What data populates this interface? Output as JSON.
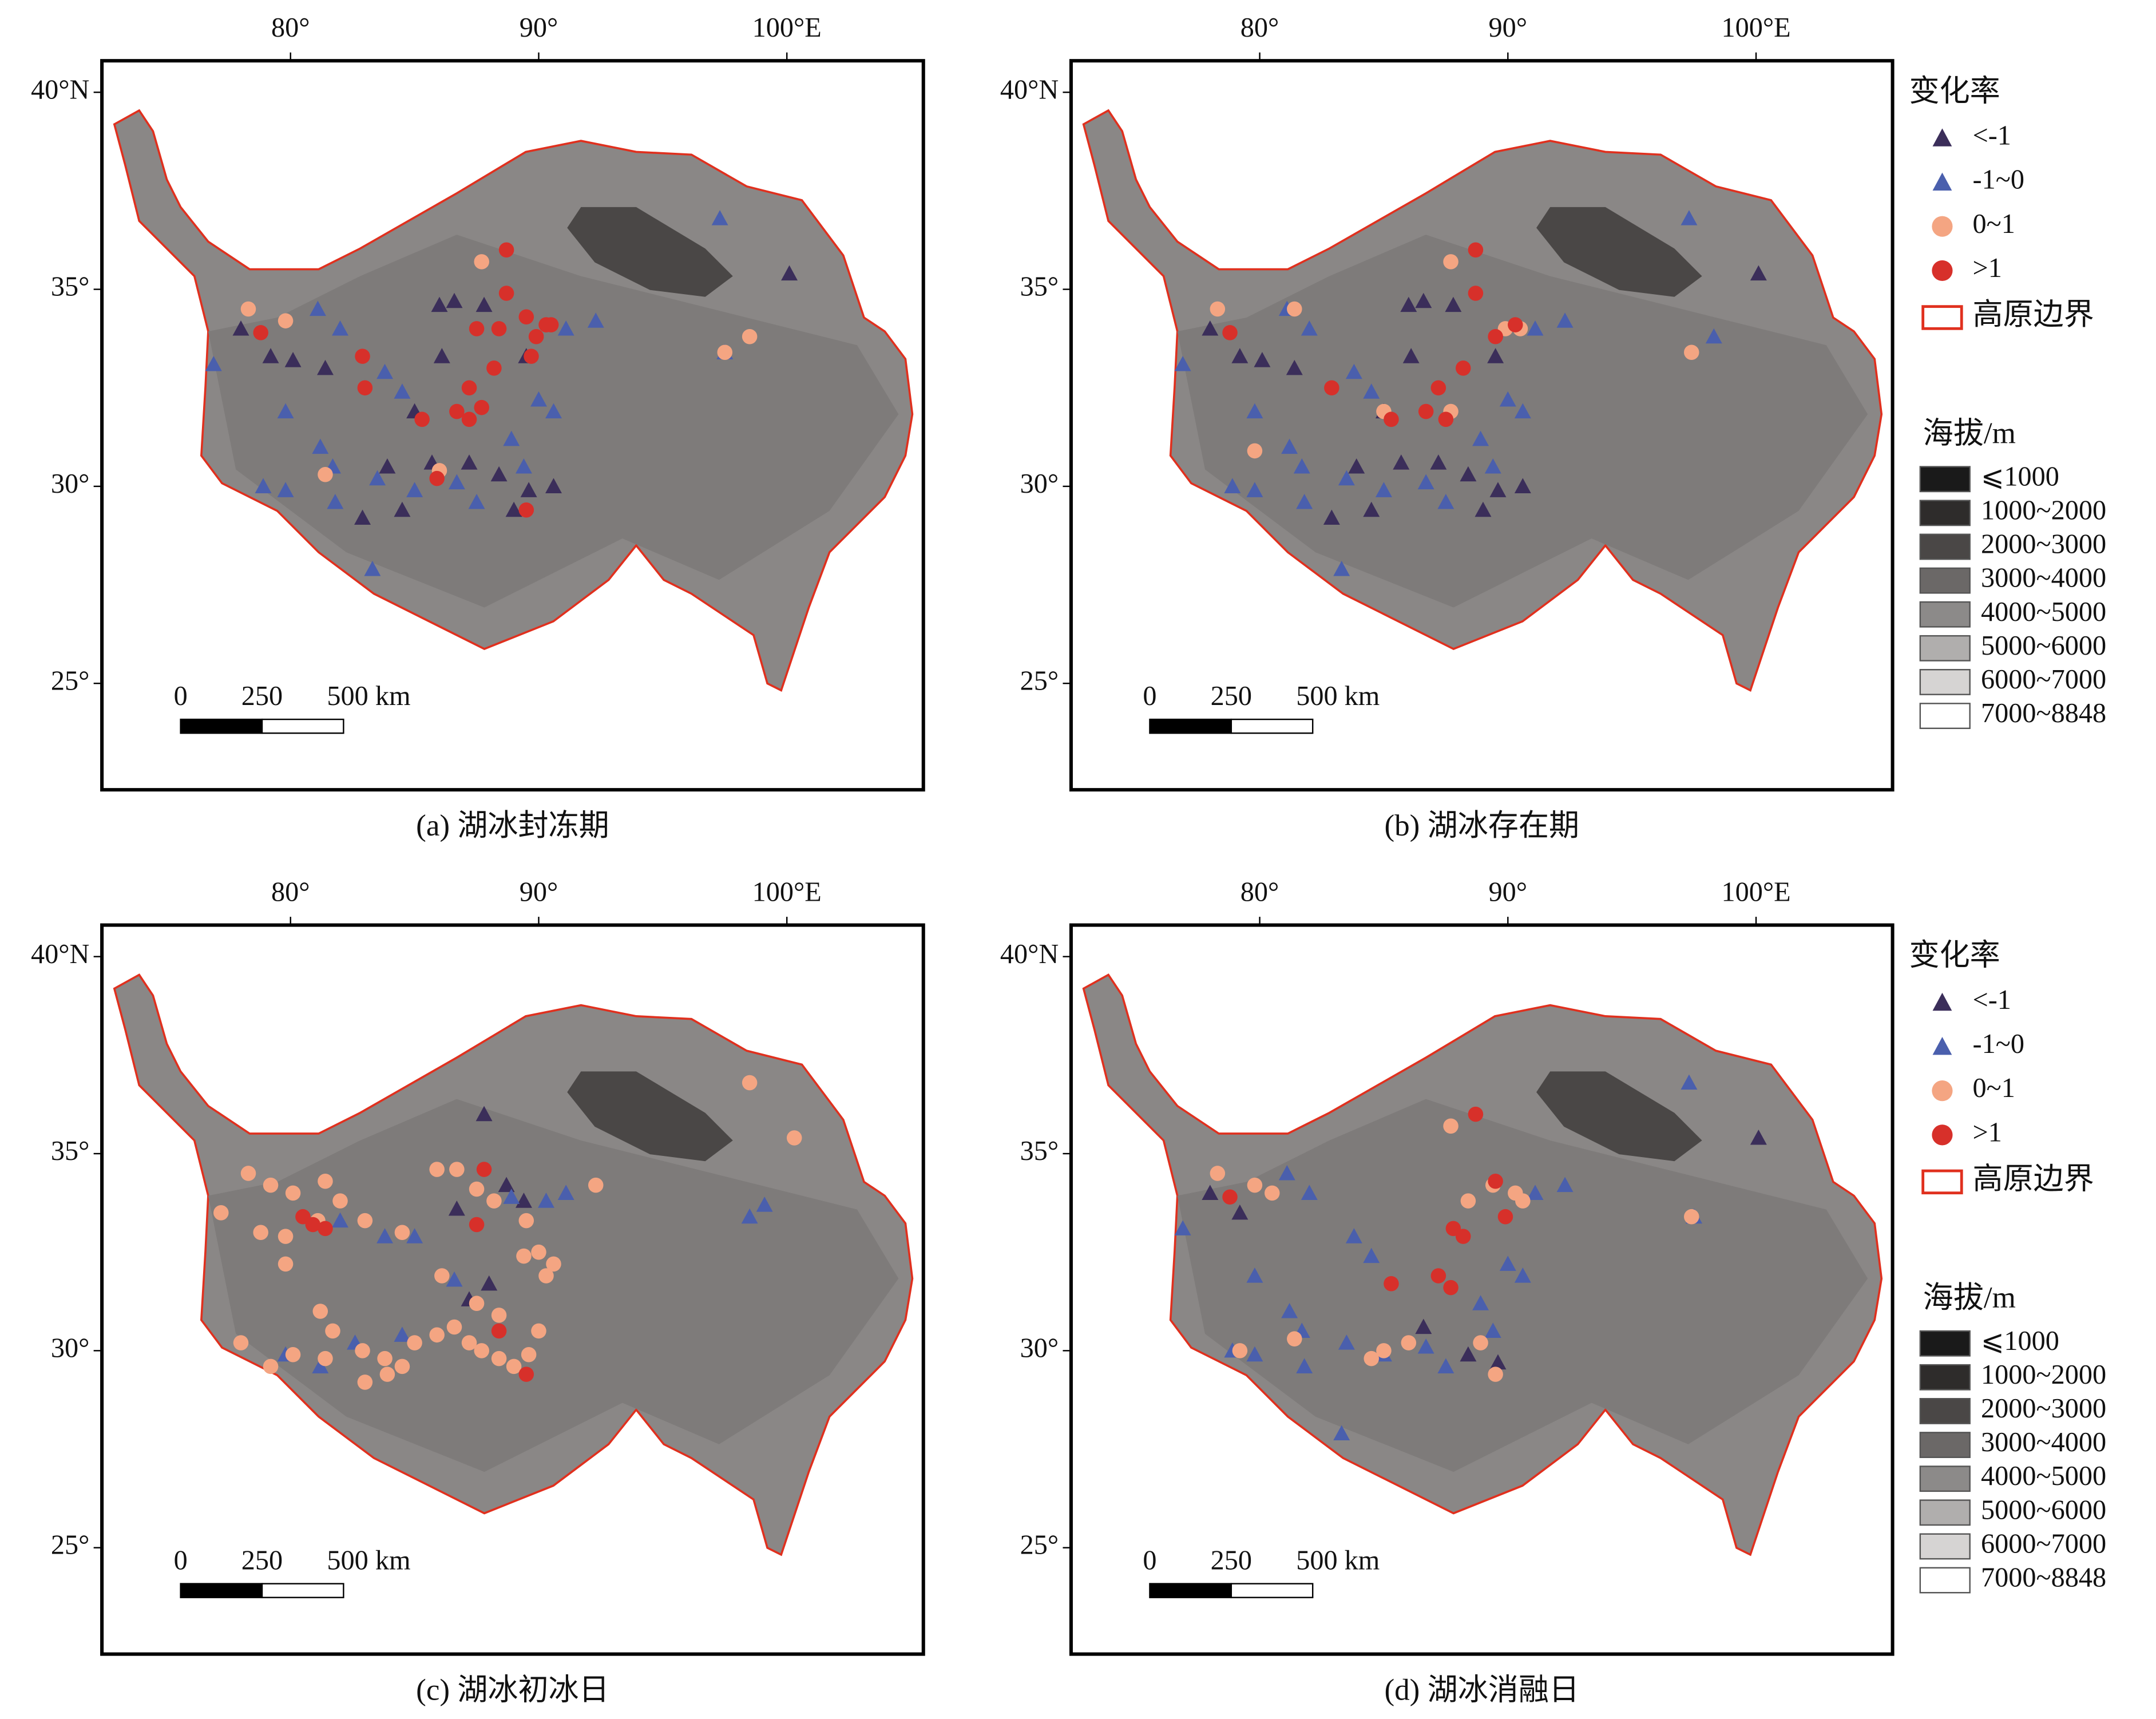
{
  "chart_data": [
    {
      "type": "scatter",
      "title": "(a) 湖冰封冻期",
      "xlim": [
        72.4,
        105.5
      ],
      "ylim": [
        22.3,
        40.8
      ],
      "xticks": [
        {
          "value": 80,
          "label": "80°"
        },
        {
          "value": 90,
          "label": "90°"
        },
        {
          "value": 100,
          "label": "100°E"
        }
      ],
      "yticks": [
        {
          "value": 40,
          "label": "40°N"
        },
        {
          "value": 35,
          "label": "35°"
        },
        {
          "value": 30,
          "label": "30°"
        },
        {
          "value": 25,
          "label": "25°"
        }
      ],
      "series": [
        {
          "name": "<-1",
          "color": "#3b2e5a",
          "marker": "triangle",
          "x": [
            78.0,
            79.2,
            80.1,
            81.4,
            86.0,
            86.6,
            87.8,
            89.5,
            86.1,
            85.0,
            85.7,
            87.2,
            88.4,
            89.6,
            90.6,
            83.9,
            82.9,
            84.5,
            89.0,
            100.1
          ],
          "y": [
            34.0,
            33.3,
            33.2,
            33.0,
            34.6,
            34.7,
            34.6,
            33.3,
            33.3,
            31.9,
            30.6,
            30.6,
            30.3,
            29.9,
            30.0,
            30.5,
            29.2,
            29.4,
            29.4,
            35.4
          ]
        },
        {
          "name": "-1~0",
          "color": "#4a5fad",
          "marker": "triangle",
          "x": [
            76.9,
            81.1,
            82.0,
            83.8,
            84.5,
            79.8,
            81.2,
            81.7,
            78.9,
            79.8,
            83.5,
            85.0,
            86.7,
            87.5,
            89.4,
            90.0,
            90.6,
            91.1,
            92.3,
            97.3,
            97.5,
            83.3,
            81.8,
            88.9
          ],
          "y": [
            33.1,
            34.5,
            34.0,
            32.9,
            32.4,
            31.9,
            31.0,
            30.5,
            30.0,
            29.9,
            30.2,
            29.9,
            30.1,
            29.6,
            30.5,
            32.2,
            31.9,
            34.0,
            34.2,
            36.8,
            33.4,
            27.9,
            29.6,
            31.2
          ]
        },
        {
          "name": "0~1",
          "color": "#f4a582",
          "marker": "circle",
          "x": [
            78.3,
            79.8,
            98.5,
            97.5,
            81.4,
            86.0,
            87.7
          ],
          "y": [
            34.5,
            34.2,
            33.8,
            33.4,
            30.3,
            30.4,
            35.7
          ]
        },
        {
          "name": ">1",
          "color": "#d7302a",
          "marker": "circle",
          "x": [
            88.7,
            88.7,
            89.5,
            90.3,
            89.9,
            89.7,
            90.5,
            88.4,
            87.5,
            88.2,
            87.2,
            87.7,
            86.7,
            87.2,
            85.3,
            83.0,
            82.9,
            78.8,
            85.9,
            89.5
          ],
          "y": [
            36.0,
            34.9,
            34.3,
            34.1,
            33.8,
            33.3,
            34.1,
            34.0,
            34.0,
            33.0,
            32.5,
            32.0,
            31.9,
            31.7,
            31.7,
            32.5,
            33.3,
            33.9,
            30.2,
            29.4
          ]
        }
      ]
    },
    {
      "type": "scatter",
      "title": "(b) 湖冰存在期",
      "xlim": [
        72.4,
        105.5
      ],
      "ylim": [
        22.3,
        40.8
      ],
      "xticks": [
        {
          "value": 80,
          "label": "80°"
        },
        {
          "value": 90,
          "label": "90°"
        },
        {
          "value": 100,
          "label": "100°E"
        }
      ],
      "yticks": [
        {
          "value": 40,
          "label": "40°N"
        },
        {
          "value": 35,
          "label": "35°"
        },
        {
          "value": 30,
          "label": "30°"
        },
        {
          "value": 25,
          "label": "25°"
        }
      ],
      "series": [
        {
          "name": "<-1",
          "color": "#3b2e5a",
          "marker": "triangle",
          "x": [
            78.0,
            79.2,
            80.1,
            81.4,
            86.0,
            86.6,
            87.8,
            89.5,
            86.1,
            85.0,
            85.7,
            87.2,
            88.4,
            89.6,
            90.6,
            83.9,
            82.9,
            84.5,
            89.0,
            100.1
          ],
          "y": [
            34.0,
            33.3,
            33.2,
            33.0,
            34.6,
            34.7,
            34.6,
            33.3,
            33.3,
            31.9,
            30.6,
            30.6,
            30.3,
            29.9,
            30.0,
            30.5,
            29.2,
            29.4,
            29.4,
            35.4
          ]
        },
        {
          "name": "-1~0",
          "color": "#4a5fad",
          "marker": "triangle",
          "x": [
            76.9,
            81.1,
            82.0,
            83.8,
            84.5,
            79.8,
            81.2,
            81.7,
            78.9,
            79.8,
            83.5,
            85.0,
            86.7,
            87.5,
            89.4,
            90.0,
            90.6,
            91.1,
            92.3,
            97.3,
            98.3,
            83.3,
            81.8,
            88.9
          ],
          "y": [
            33.1,
            34.5,
            34.0,
            32.9,
            32.4,
            31.9,
            31.0,
            30.5,
            30.0,
            29.9,
            30.2,
            29.9,
            30.1,
            29.6,
            30.5,
            32.2,
            31.9,
            34.0,
            34.2,
            36.8,
            33.8,
            27.9,
            29.6,
            31.2
          ]
        },
        {
          "name": "0~1",
          "color": "#f4a582",
          "marker": "circle",
          "x": [
            78.3,
            81.4,
            87.7,
            89.9,
            90.5,
            97.4,
            79.8,
            85.0,
            87.7
          ],
          "y": [
            34.5,
            34.5,
            35.7,
            34.0,
            34.0,
            33.4,
            30.9,
            31.9,
            31.9
          ]
        },
        {
          "name": ">1",
          "color": "#d7302a",
          "marker": "circle",
          "x": [
            78.8,
            88.7,
            88.7,
            89.5,
            90.3,
            87.2,
            86.7,
            87.5,
            85.3,
            82.9,
            88.2
          ],
          "y": [
            33.9,
            36.0,
            34.9,
            33.8,
            34.1,
            32.5,
            31.9,
            31.7,
            31.7,
            32.5,
            33.0
          ]
        }
      ]
    },
    {
      "type": "scatter",
      "title": "(c) 湖冰初冰日",
      "xlim": [
        72.4,
        105.5
      ],
      "ylim": [
        22.3,
        40.8
      ],
      "xticks": [
        {
          "value": 80,
          "label": "80°"
        },
        {
          "value": 90,
          "label": "90°"
        },
        {
          "value": 100,
          "label": "100°E"
        }
      ],
      "yticks": [
        {
          "value": 40,
          "label": "40°N"
        },
        {
          "value": 35,
          "label": "35°"
        },
        {
          "value": 30,
          "label": "30°"
        },
        {
          "value": 25,
          "label": "25°"
        }
      ],
      "series": [
        {
          "name": "<-1",
          "color": "#3b2e5a",
          "marker": "triangle",
          "x": [
            87.8,
            88.7,
            89.4,
            88.0,
            87.2,
            86.7
          ],
          "y": [
            36.0,
            34.2,
            33.8,
            31.7,
            31.3,
            33.6
          ]
        },
        {
          "name": "-1~0",
          "color": "#4a5fad",
          "marker": "triangle",
          "x": [
            82.0,
            83.8,
            85.0,
            86.6,
            88.9,
            90.3,
            91.1,
            98.5,
            99.1,
            82.6,
            84.5,
            79.8,
            81.2
          ],
          "y": [
            33.3,
            32.9,
            32.9,
            31.8,
            33.9,
            33.8,
            34.0,
            33.4,
            33.7,
            30.2,
            30.4,
            29.9,
            29.6
          ]
        },
        {
          "name": "0~1",
          "color": "#f4a582",
          "marker": "circle",
          "x": [
            78.3,
            79.2,
            80.1,
            81.4,
            82.0,
            83.0,
            84.5,
            85.9,
            86.7,
            87.5,
            88.2,
            89.5,
            90.0,
            90.6,
            92.3,
            78.8,
            79.8,
            81.2,
            81.7,
            82.9,
            83.8,
            85.0,
            85.9,
            86.6,
            87.2,
            87.7,
            88.4,
            89.0,
            89.6,
            90.0,
            78.0,
            79.2,
            80.1,
            81.4,
            83.0,
            83.9,
            84.5,
            86.1,
            87.5,
            88.4,
            89.4,
            90.3,
            98.5,
            100.3,
            77.2,
            79.8,
            81.1
          ],
          "y": [
            34.5,
            34.2,
            34.0,
            34.3,
            33.8,
            33.3,
            33.0,
            34.6,
            34.6,
            34.1,
            33.8,
            33.3,
            32.5,
            32.2,
            34.2,
            33.0,
            32.2,
            31.0,
            30.5,
            30.0,
            29.8,
            30.2,
            30.4,
            30.6,
            30.2,
            30.0,
            29.8,
            29.6,
            29.9,
            30.5,
            30.2,
            29.6,
            29.9,
            29.8,
            29.2,
            29.4,
            29.6,
            31.9,
            31.2,
            30.9,
            32.4,
            31.9,
            36.8,
            35.4,
            33.5,
            32.9,
            33.3
          ]
        },
        {
          "name": ">1",
          "color": "#d7302a",
          "marker": "circle",
          "x": [
            80.5,
            80.9,
            81.4,
            87.5,
            87.8,
            88.4,
            89.5
          ],
          "y": [
            33.4,
            33.2,
            33.1,
            33.2,
            34.6,
            30.5,
            29.4
          ]
        }
      ]
    },
    {
      "type": "scatter",
      "title": "(d) 湖冰消融日",
      "xlim": [
        72.4,
        105.5
      ],
      "ylim": [
        22.3,
        40.8
      ],
      "xticks": [
        {
          "value": 80,
          "label": "80°"
        },
        {
          "value": 90,
          "label": "90°"
        },
        {
          "value": 100,
          "label": "100°E"
        }
      ],
      "yticks": [
        {
          "value": 40,
          "label": "40°N"
        },
        {
          "value": 35,
          "label": "35°"
        },
        {
          "value": 30,
          "label": "30°"
        },
        {
          "value": 25,
          "label": "25°"
        }
      ],
      "series": [
        {
          "name": "<-1",
          "color": "#3b2e5a",
          "marker": "triangle",
          "x": [
            78.0,
            79.2,
            88.4,
            89.6,
            100.1,
            86.6
          ],
          "y": [
            34.0,
            33.5,
            29.9,
            29.7,
            35.4,
            30.6
          ]
        },
        {
          "name": "-1~0",
          "color": "#4a5fad",
          "marker": "triangle",
          "x": [
            76.9,
            81.1,
            82.0,
            83.8,
            84.5,
            79.8,
            81.2,
            81.7,
            78.9,
            79.8,
            83.5,
            85.0,
            86.7,
            87.5,
            89.4,
            90.0,
            90.6,
            91.1,
            92.3,
            97.3,
            97.5,
            83.3,
            81.8,
            88.9
          ],
          "y": [
            33.1,
            34.5,
            34.0,
            32.9,
            32.4,
            31.9,
            31.0,
            30.5,
            30.0,
            29.9,
            30.2,
            29.9,
            30.1,
            29.6,
            30.5,
            32.2,
            31.9,
            34.0,
            34.2,
            36.8,
            33.4,
            27.9,
            29.6,
            31.2
          ]
        },
        {
          "name": "0~1",
          "color": "#f4a582",
          "marker": "circle",
          "x": [
            78.3,
            79.8,
            80.5,
            87.7,
            88.4,
            89.4,
            90.3,
            90.6,
            97.4,
            86.0,
            85.0,
            84.5,
            88.9,
            89.5,
            81.4,
            79.2
          ],
          "y": [
            34.5,
            34.2,
            34.0,
            35.7,
            33.8,
            34.2,
            34.0,
            33.8,
            33.4,
            30.2,
            30.0,
            29.8,
            30.2,
            29.4,
            30.3,
            30.0
          ]
        },
        {
          "name": ">1",
          "color": "#d7302a",
          "marker": "circle",
          "x": [
            78.8,
            85.3,
            87.7,
            87.8,
            88.2,
            89.5,
            89.9,
            88.7,
            87.2
          ],
          "y": [
            33.9,
            31.7,
            31.6,
            33.1,
            32.9,
            34.3,
            33.4,
            36.0,
            31.9
          ]
        }
      ]
    }
  ],
  "scale_bar": {
    "ticks": [
      0,
      250,
      {
        "value": 500,
        "label": "500 km"
      }
    ]
  },
  "legend": {
    "title": "变化率",
    "boundary": "高原边界",
    "elevation_title": "海拔/m",
    "elevation": [
      {
        "label": "⩽1000",
        "color": "#1a1a1a"
      },
      {
        "label": "1000~2000",
        "color": "#2e2c2b"
      },
      {
        "label": "2000~3000",
        "color": "#4a4746"
      },
      {
        "label": "3000~4000",
        "color": "#6b6867"
      },
      {
        "label": "4000~5000",
        "color": "#8c8a89"
      },
      {
        "label": "5000~6000",
        "color": "#b0aead"
      },
      {
        "label": "6000~7000",
        "color": "#d6d4d3"
      },
      {
        "label": "7000~8848",
        "color": "#ffffff"
      }
    ]
  }
}
